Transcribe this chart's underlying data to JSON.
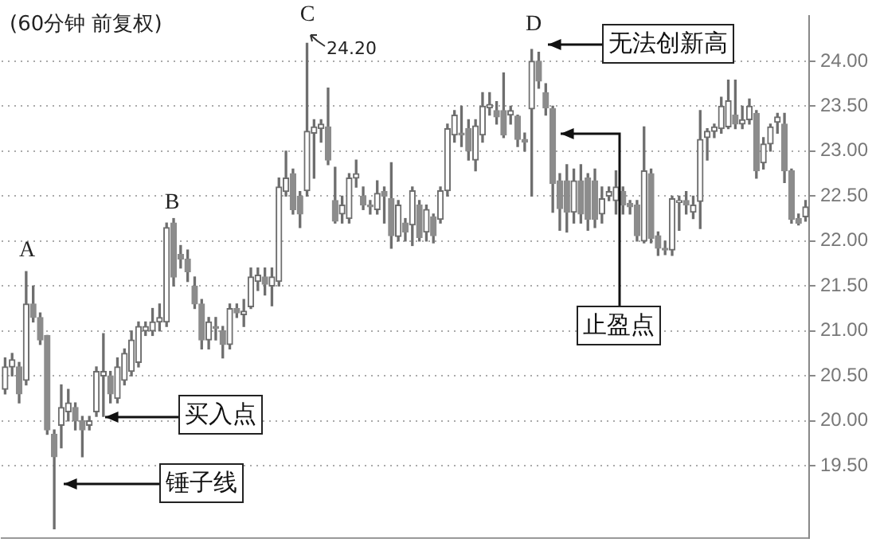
{
  "chart_data": {
    "type": "candlestick",
    "title": "(60分钟 前复权)",
    "categories": [
      null,
      null,
      null,
      null,
      null,
      null,
      null,
      null,
      null,
      null,
      null,
      null,
      null,
      null,
      null,
      null,
      null,
      null,
      null,
      null,
      null,
      null,
      null,
      null,
      null,
      null,
      null,
      null,
      null,
      null,
      null,
      null,
      null,
      null,
      null,
      null,
      null,
      null,
      null,
      null,
      null,
      null,
      null,
      null,
      null,
      null,
      null,
      null,
      null,
      null,
      null,
      null,
      null,
      null,
      null,
      null,
      null,
      null,
      null,
      null,
      null,
      null,
      null,
      null,
      null,
      null,
      null,
      null,
      null,
      null,
      null,
      null,
      null,
      null,
      null,
      null,
      null,
      null,
      null,
      null,
      null,
      null,
      null,
      null,
      null,
      null,
      null,
      null,
      null,
      null,
      null,
      null,
      null,
      null,
      null,
      null,
      null,
      null,
      null,
      null,
      null,
      null,
      null,
      null,
      null,
      null,
      null,
      null,
      null,
      null,
      null,
      null,
      null,
      null,
      null
    ],
    "ohlc": [
      [
        20.35,
        20.7,
        20.3,
        20.6
      ],
      [
        20.6,
        20.75,
        20.5,
        20.68
      ],
      [
        20.6,
        20.65,
        20.2,
        20.3
      ],
      [
        20.45,
        21.66,
        20.4,
        21.3
      ],
      [
        21.3,
        21.5,
        21.1,
        21.15
      ],
      [
        21.15,
        21.2,
        20.85,
        20.9
      ],
      [
        20.95,
        20.95,
        19.85,
        19.9
      ],
      [
        19.85,
        19.9,
        18.8,
        19.6
      ],
      [
        19.95,
        20.4,
        19.7,
        20.15
      ],
      [
        20.1,
        20.35,
        20.0,
        20.2
      ],
      [
        20.15,
        20.2,
        19.9,
        20.0
      ],
      [
        20.0,
        20.05,
        19.6,
        19.9
      ],
      [
        19.95,
        20.05,
        19.9,
        20.0
      ],
      [
        20.1,
        20.6,
        20.05,
        20.55
      ],
      [
        20.5,
        20.97,
        20.05,
        20.55
      ],
      [
        20.5,
        20.55,
        20.2,
        20.3
      ],
      [
        20.25,
        20.7,
        20.2,
        20.6
      ],
      [
        20.45,
        20.8,
        20.4,
        20.75
      ],
      [
        20.55,
        21.0,
        20.5,
        20.9
      ],
      [
        20.65,
        21.1,
        20.6,
        21.05
      ],
      [
        21.0,
        21.1,
        20.95,
        21.05
      ],
      [
        21.0,
        21.25,
        20.95,
        21.1
      ],
      [
        21.1,
        21.3,
        21.0,
        21.15
      ],
      [
        21.1,
        22.2,
        21.05,
        22.15
      ],
      [
        22.2,
        22.25,
        21.5,
        21.6
      ],
      [
        21.85,
        21.95,
        21.7,
        21.8
      ],
      [
        21.8,
        21.9,
        21.55,
        21.66
      ],
      [
        21.5,
        21.6,
        21.25,
        21.3
      ],
      [
        21.3,
        21.35,
        20.8,
        20.9
      ],
      [
        20.9,
        21.15,
        20.8,
        21.1
      ],
      [
        21.05,
        21.15,
        20.9,
        21.03
      ],
      [
        21.0,
        21.05,
        20.7,
        20.85
      ],
      [
        20.85,
        21.3,
        20.8,
        21.25
      ],
      [
        21.25,
        21.3,
        21.15,
        21.2
      ],
      [
        21.18,
        21.35,
        21.05,
        21.22
      ],
      [
        21.27,
        21.7,
        21.25,
        21.6
      ],
      [
        21.55,
        21.7,
        21.45,
        21.62
      ],
      [
        21.6,
        21.7,
        21.4,
        21.52
      ],
      [
        21.5,
        21.7,
        21.28,
        21.6
      ],
      [
        21.55,
        22.7,
        21.5,
        22.6
      ],
      [
        22.55,
        23.0,
        22.5,
        22.7
      ],
      [
        22.75,
        22.8,
        22.3,
        22.35
      ],
      [
        22.5,
        22.55,
        22.15,
        22.3
      ],
      [
        22.56,
        24.2,
        22.5,
        23.22
      ],
      [
        23.2,
        23.35,
        22.7,
        23.27
      ],
      [
        23.25,
        23.35,
        23.1,
        23.3
      ],
      [
        23.27,
        23.7,
        22.85,
        22.9
      ],
      [
        22.45,
        22.82,
        22.2,
        22.22
      ],
      [
        22.3,
        22.5,
        22.2,
        22.4
      ],
      [
        22.25,
        22.75,
        22.2,
        22.7
      ],
      [
        22.7,
        22.9,
        22.6,
        22.75
      ],
      [
        22.5,
        22.6,
        22.35,
        22.4
      ],
      [
        22.4,
        22.45,
        22.3,
        22.38
      ],
      [
        22.35,
        22.67,
        22.3,
        22.53
      ],
      [
        22.55,
        22.6,
        22.2,
        22.5
      ],
      [
        22.47,
        22.87,
        21.92,
        22.06
      ],
      [
        22.05,
        22.45,
        22.0,
        22.4
      ],
      [
        22.2,
        22.25,
        22.0,
        22.1
      ],
      [
        22.18,
        22.6,
        21.95,
        22.56
      ],
      [
        22.4,
        22.45,
        22.0,
        22.04
      ],
      [
        22.1,
        22.4,
        22.0,
        22.35
      ],
      [
        22.27,
        22.3,
        21.98,
        22.06
      ],
      [
        22.24,
        22.6,
        22.2,
        22.56
      ],
      [
        22.56,
        23.3,
        22.5,
        23.25
      ],
      [
        23.18,
        23.45,
        23.1,
        23.4
      ],
      [
        23.2,
        23.5,
        23.05,
        23.18
      ],
      [
        23.25,
        23.35,
        22.9,
        23.0
      ],
      [
        22.9,
        23.35,
        22.78,
        23.28
      ],
      [
        23.18,
        23.65,
        23.1,
        23.5
      ],
      [
        23.48,
        23.65,
        23.4,
        23.52
      ],
      [
        23.45,
        23.55,
        23.3,
        23.38
      ],
      [
        23.45,
        23.87,
        23.15,
        23.18
      ],
      [
        23.4,
        23.5,
        23.3,
        23.45
      ],
      [
        23.39,
        23.4,
        23.05,
        23.13
      ],
      [
        23.13,
        23.2,
        23.0,
        23.1
      ],
      [
        23.47,
        24.13,
        22.5,
        24.0
      ],
      [
        24.0,
        24.1,
        23.7,
        23.78
      ],
      [
        23.65,
        23.75,
        23.4,
        23.48
      ],
      [
        23.47,
        23.5,
        22.32,
        22.64
      ],
      [
        22.67,
        22.75,
        22.12,
        22.36
      ],
      [
        22.67,
        22.85,
        22.1,
        22.32
      ],
      [
        22.32,
        22.8,
        22.2,
        22.67
      ],
      [
        22.67,
        22.85,
        22.2,
        22.3
      ],
      [
        22.7,
        22.75,
        22.12,
        22.24
      ],
      [
        22.67,
        22.8,
        22.15,
        22.24
      ],
      [
        22.3,
        22.6,
        22.2,
        22.47
      ],
      [
        22.5,
        22.6,
        22.45,
        22.55
      ],
      [
        22.45,
        22.78,
        22.3,
        22.6
      ],
      [
        22.55,
        22.6,
        22.3,
        22.4
      ],
      [
        22.42,
        22.45,
        22.3,
        22.38
      ],
      [
        22.4,
        22.45,
        22.0,
        22.06
      ],
      [
        22.0,
        23.27,
        21.98,
        22.78
      ],
      [
        22.75,
        22.8,
        21.98,
        22.03
      ],
      [
        22.06,
        22.1,
        21.84,
        21.92
      ],
      [
        21.92,
        22.0,
        21.85,
        21.9
      ],
      [
        21.9,
        22.5,
        21.84,
        22.47
      ],
      [
        22.43,
        22.5,
        22.12,
        22.45
      ],
      [
        22.45,
        22.55,
        22.3,
        22.4
      ],
      [
        22.32,
        22.5,
        22.25,
        22.4
      ],
      [
        22.44,
        23.45,
        22.14,
        23.13
      ],
      [
        23.15,
        23.25,
        22.9,
        23.22
      ],
      [
        23.22,
        23.3,
        23.15,
        23.27
      ],
      [
        23.25,
        23.6,
        23.2,
        23.5
      ],
      [
        23.27,
        23.79,
        23.25,
        23.56
      ],
      [
        23.4,
        23.79,
        23.25,
        23.3
      ],
      [
        23.3,
        23.5,
        23.25,
        23.35
      ],
      [
        23.35,
        23.58,
        23.3,
        23.5
      ],
      [
        23.42,
        23.45,
        22.7,
        22.78
      ],
      [
        22.87,
        23.15,
        22.8,
        23.08
      ],
      [
        23.08,
        23.3,
        23.0,
        23.27
      ],
      [
        23.32,
        23.42,
        23.2,
        23.38
      ],
      [
        23.3,
        23.42,
        22.65,
        22.78
      ],
      [
        22.78,
        22.8,
        22.2,
        22.24
      ],
      [
        22.25,
        22.3,
        22.18,
        22.2
      ],
      [
        22.27,
        22.45,
        22.22,
        22.38
      ]
    ],
    "ylim": [
      18.7,
      24.5
    ],
    "yticks": [
      {
        "value": 19.5,
        "label": "19.50"
      },
      {
        "value": 20,
        "label": "20.00"
      },
      {
        "value": 20.5,
        "label": "20.50"
      },
      {
        "value": 21,
        "label": "21.00"
      },
      {
        "value": 21.5,
        "label": "21.50"
      },
      {
        "value": 22,
        "label": "22.00"
      },
      {
        "value": 22.5,
        "label": "22.50"
      },
      {
        "value": 23,
        "label": "23.00"
      },
      {
        "value": 23.5,
        "label": "23.50"
      },
      {
        "value": 24,
        "label": "24.00"
      }
    ],
    "grid": "y",
    "tick_labels": "y",
    "annotations": [
      "A",
      "B",
      "C",
      "D",
      "24.20",
      "买入点",
      "锤子线",
      "无法创新高",
      "止盈点"
    ]
  }
}
